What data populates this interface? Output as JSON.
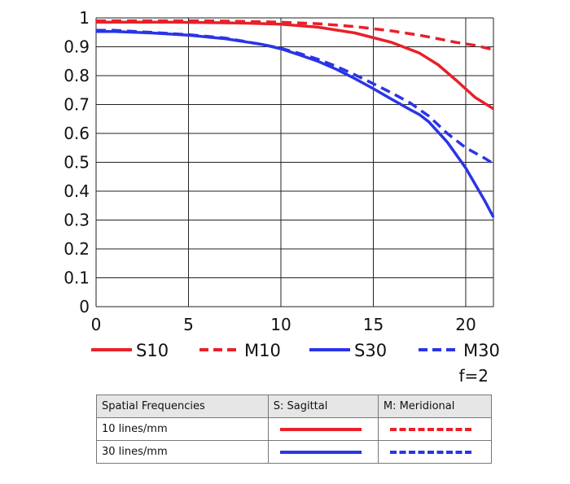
{
  "chart_data": {
    "type": "line",
    "title": "",
    "xlabel": "",
    "ylabel": "",
    "xlim": [
      0,
      21.5
    ],
    "ylim": [
      0,
      1
    ],
    "x_ticks": [
      "0",
      "5",
      "10",
      "15",
      "20"
    ],
    "y_ticks": [
      "0",
      "0.1",
      "0.2",
      "0.3",
      "0.4",
      "0.5",
      "0.6",
      "0.7",
      "0.8",
      "0.9",
      "1"
    ],
    "grid": true,
    "aperture_label": "f=2",
    "series": [
      {
        "name": "S10",
        "color": "#e8202a",
        "style": "solid",
        "x": [
          0,
          2,
          4,
          6,
          8,
          10,
          12,
          14,
          16,
          17.5,
          18.5,
          19.5,
          20.5,
          21.5
        ],
        "y": [
          0.985,
          0.985,
          0.985,
          0.984,
          0.982,
          0.978,
          0.968,
          0.948,
          0.915,
          0.878,
          0.838,
          0.783,
          0.725,
          0.685
        ]
      },
      {
        "name": "M10",
        "color": "#e8202a",
        "style": "dashed",
        "x": [
          0,
          2,
          4,
          6,
          8,
          10,
          12,
          14,
          16,
          17.5,
          18.5,
          19.5,
          20.5,
          21.5
        ],
        "y": [
          0.99,
          0.99,
          0.99,
          0.99,
          0.988,
          0.985,
          0.98,
          0.97,
          0.955,
          0.94,
          0.928,
          0.915,
          0.905,
          0.89
        ]
      },
      {
        "name": "S30",
        "color": "#2a35e6",
        "style": "solid",
        "x": [
          0,
          1,
          3,
          5,
          7,
          9,
          10,
          11,
          12,
          13,
          14,
          15,
          16,
          17,
          17.5,
          18,
          19,
          20,
          21,
          21.5
        ],
        "y": [
          0.953,
          0.953,
          0.948,
          0.94,
          0.928,
          0.908,
          0.893,
          0.872,
          0.85,
          0.822,
          0.79,
          0.755,
          0.718,
          0.682,
          0.665,
          0.64,
          0.57,
          0.48,
          0.37,
          0.31
        ]
      },
      {
        "name": "M30",
        "color": "#2a35e6",
        "style": "dashed",
        "x": [
          0,
          1,
          3,
          5,
          7,
          9,
          10,
          11,
          12,
          13,
          14,
          15,
          16,
          17,
          18,
          19,
          20,
          21,
          21.5
        ],
        "y": [
          0.957,
          0.957,
          0.95,
          0.942,
          0.93,
          0.908,
          0.895,
          0.877,
          0.857,
          0.832,
          0.803,
          0.772,
          0.74,
          0.705,
          0.66,
          0.6,
          0.55,
          0.515,
          0.495
        ]
      }
    ]
  },
  "legend_table": {
    "header": [
      "Spatial Frequencies",
      "S: Sagittal",
      "M: Meridional"
    ],
    "rows": [
      {
        "label": "10 lines/mm",
        "color": "#e8202a"
      },
      {
        "label": "30 lines/mm",
        "color": "#2a35e6"
      }
    ]
  }
}
